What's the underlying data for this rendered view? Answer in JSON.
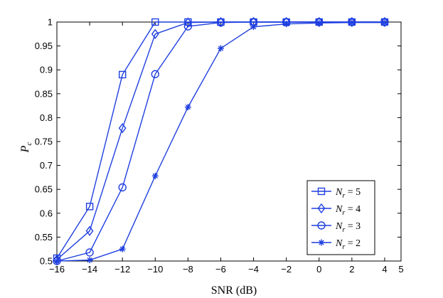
{
  "chart_data": {
    "type": "line",
    "xlabel": "SNR (dB)",
    "ylabel": "P_c",
    "xlim": [
      -16,
      5
    ],
    "ylim": [
      0.5,
      1
    ],
    "x_ticks": [
      "−16",
      "−14",
      "−12",
      "−10",
      "−8",
      "−6",
      "−4",
      "−2",
      "0",
      "2",
      "4",
      "5"
    ],
    "y_ticks": [
      "0.5",
      "0.55",
      "0.6",
      "0.65",
      "0.7",
      "0.75",
      "0.8",
      "0.85",
      "0.9",
      "0.95",
      "1"
    ],
    "grid": false,
    "legend_position": "lower-right",
    "line_color": "#1f3fe0",
    "x": [
      -16,
      -14,
      -12,
      -10,
      -8,
      -6,
      -4,
      -2,
      0,
      2,
      4
    ],
    "series": [
      {
        "name": "N_r = 5",
        "legend_base": "N",
        "legend_sub": "r",
        "legend_rest": " = 5",
        "marker": "square",
        "values": [
          0.506,
          0.614,
          0.89,
          1.0,
          1.0,
          1.0,
          1.0,
          1.0,
          1.0,
          1.0,
          1.0
        ]
      },
      {
        "name": "N_r = 4",
        "legend_base": "N",
        "legend_sub": "r",
        "legend_rest": " = 4",
        "marker": "diamond",
        "values": [
          0.503,
          0.563,
          0.778,
          0.975,
          0.999,
          1.0,
          1.0,
          1.0,
          1.0,
          1.0,
          1.0
        ]
      },
      {
        "name": "N_r = 3",
        "legend_base": "N",
        "legend_sub": "r",
        "legend_rest": " = 3",
        "marker": "circle",
        "values": [
          0.5,
          0.518,
          0.654,
          0.891,
          0.991,
          0.999,
          1.0,
          1.0,
          1.0,
          1.0,
          1.0
        ]
      },
      {
        "name": "N_r = 2",
        "legend_base": "N",
        "legend_sub": "r",
        "legend_rest": " = 2",
        "marker": "star",
        "values": [
          0.5,
          0.502,
          0.525,
          0.678,
          0.822,
          0.945,
          0.99,
          0.996,
          0.998,
          0.999,
          0.999
        ]
      }
    ]
  }
}
